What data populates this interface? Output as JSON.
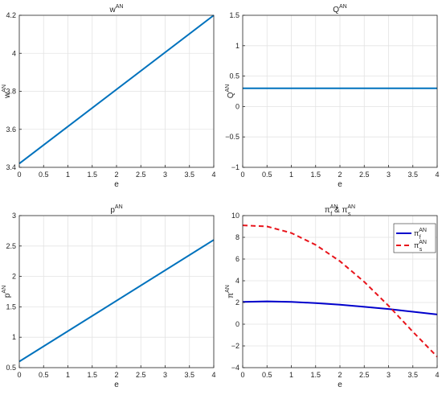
{
  "chart_data": [
    {
      "id": "w",
      "type": "line",
      "title": {
        "base": "w",
        "sup": "AN"
      },
      "xlabel": "e",
      "ylabel": {
        "base": "w",
        "sup": "AN"
      },
      "xlim": [
        0,
        4
      ],
      "ylim": [
        3.4,
        4.2
      ],
      "x_ticks": [
        0,
        0.5,
        1,
        1.5,
        2,
        2.5,
        3,
        3.5,
        4
      ],
      "x_tick_labels": [
        "0",
        "0.5",
        "1",
        "1.5",
        "2",
        "2.5",
        "3",
        "3.5",
        "4"
      ],
      "y_ticks": [
        3.4,
        3.6,
        3.8,
        4,
        4.2
      ],
      "y_tick_labels": [
        "3.4",
        "3.6",
        "3.8",
        "4",
        "4.2"
      ],
      "grid": true,
      "series": [
        {
          "color": "#0072BD",
          "dash": "solid",
          "width": 2,
          "x": [
            0,
            4
          ],
          "y": [
            3.42,
            4.2
          ]
        }
      ]
    },
    {
      "id": "Q",
      "type": "line",
      "title": {
        "base": "Q",
        "sup": "AN"
      },
      "xlabel": "e",
      "ylabel": {
        "base": "Q",
        "sup": "AN"
      },
      "xlim": [
        0,
        4
      ],
      "ylim": [
        -1,
        1.5
      ],
      "x_ticks": [
        0,
        0.5,
        1,
        1.5,
        2,
        2.5,
        3,
        3.5,
        4
      ],
      "x_tick_labels": [
        "0",
        "0.5",
        "1",
        "1.5",
        "2",
        "2.5",
        "3",
        "3.5",
        "4"
      ],
      "y_ticks": [
        -1,
        -0.5,
        0,
        0.5,
        1,
        1.5
      ],
      "y_tick_labels": [
        "−1",
        "−0.5",
        "0",
        "0.5",
        "1",
        "1.5"
      ],
      "grid": true,
      "series": [
        {
          "color": "#0072BD",
          "dash": "solid",
          "width": 2,
          "x": [
            0,
            4
          ],
          "y": [
            0.3,
            0.3
          ]
        }
      ]
    },
    {
      "id": "p",
      "type": "line",
      "title": {
        "base": "p",
        "sup": "AN"
      },
      "xlabel": "e",
      "ylabel": {
        "base": "p",
        "sup": "AN"
      },
      "xlim": [
        0,
        4
      ],
      "ylim": [
        0.5,
        3
      ],
      "x_ticks": [
        0,
        0.5,
        1,
        1.5,
        2,
        2.5,
        3,
        3.5,
        4
      ],
      "x_tick_labels": [
        "0",
        "0.5",
        "1",
        "1.5",
        "2",
        "2.5",
        "3",
        "3.5",
        "4"
      ],
      "y_ticks": [
        0.5,
        1,
        1.5,
        2,
        2.5,
        3
      ],
      "y_tick_labels": [
        "0.5",
        "1",
        "1.5",
        "2",
        "2.5",
        "3"
      ],
      "grid": true,
      "series": [
        {
          "color": "#0072BD",
          "dash": "solid",
          "width": 2,
          "x": [
            0,
            4
          ],
          "y": [
            0.6,
            2.6
          ]
        }
      ]
    },
    {
      "id": "pi",
      "type": "line",
      "title": {
        "parts": [
          {
            "t": "π",
            "sup": "AN",
            "sub": "f"
          },
          {
            "t": " & "
          },
          {
            "t": "π",
            "sup": "AN",
            "sub": "s"
          }
        ]
      },
      "xlabel": "e",
      "ylabel": {
        "base": "π",
        "sup": "AN"
      },
      "xlim": [
        0,
        4
      ],
      "ylim": [
        -4,
        10
      ],
      "x_ticks": [
        0,
        0.5,
        1,
        1.5,
        2,
        2.5,
        3,
        3.5,
        4
      ],
      "x_tick_labels": [
        "0",
        "0.5",
        "1",
        "1.5",
        "2",
        "2.5",
        "3",
        "3.5",
        "4"
      ],
      "y_ticks": [
        -4,
        -2,
        0,
        2,
        4,
        6,
        8,
        10
      ],
      "y_tick_labels": [
        "−4",
        "−2",
        "0",
        "2",
        "4",
        "6",
        "8",
        "10"
      ],
      "grid": true,
      "legend": "top-right",
      "series": [
        {
          "label": {
            "base": "π",
            "sup": "AN",
            "sub": "f"
          },
          "color": "#0000CC",
          "dash": "solid",
          "width": 2,
          "x": [
            0,
            0.5,
            1,
            1.5,
            2,
            2.5,
            3,
            3.5,
            4
          ],
          "y": [
            2.05,
            2.1,
            2.05,
            1.95,
            1.8,
            1.6,
            1.4,
            1.15,
            0.9
          ]
        },
        {
          "label": {
            "base": "π",
            "sup": "AN",
            "sub": "s"
          },
          "color": "#E8141B",
          "dash": "6,4",
          "width": 2,
          "x": [
            0,
            0.5,
            1,
            1.5,
            2,
            2.5,
            3,
            3.5,
            4
          ],
          "y": [
            9.1,
            9.0,
            8.4,
            7.3,
            5.8,
            3.9,
            1.7,
            -0.7,
            -3.0
          ]
        }
      ]
    }
  ]
}
